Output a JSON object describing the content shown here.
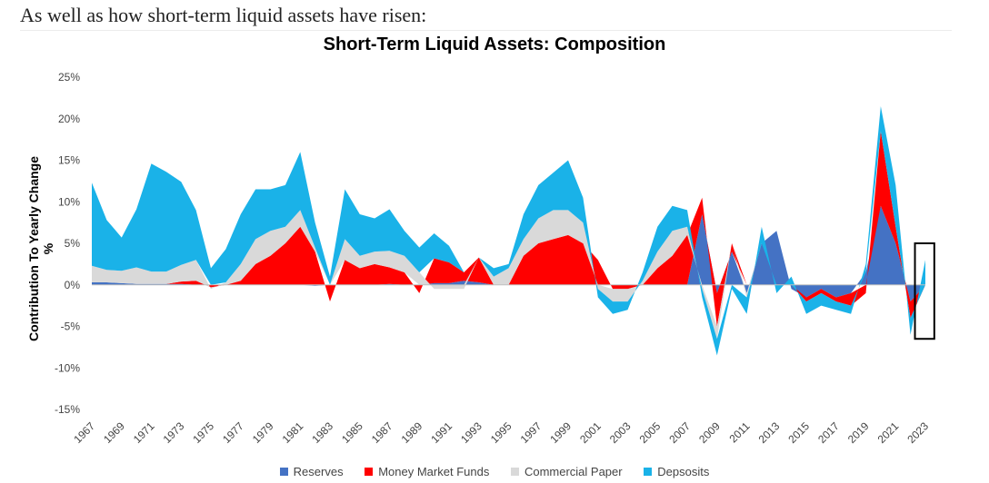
{
  "intro_text": "As well as how short-term liquid assets have risen:",
  "chart_data": {
    "type": "area",
    "stacked": true,
    "title": "Short-Term Liquid Assets: Composition",
    "xlabel": "",
    "ylabel": "Contribution To Yearly Change %",
    "ylim": [
      -15,
      25
    ],
    "yticks": [
      "25%",
      "20%",
      "15%",
      "10%",
      "5%",
      "0%",
      "-5%",
      "-10%",
      "-15%"
    ],
    "xticks": [
      "1967",
      "1969",
      "1971",
      "1973",
      "1975",
      "1977",
      "1979",
      "1981",
      "1983",
      "1985",
      "1987",
      "1989",
      "1991",
      "1993",
      "1995",
      "1997",
      "1999",
      "2001",
      "2003",
      "2005",
      "2007",
      "2009",
      "2011",
      "2013",
      "2015",
      "2017",
      "2019",
      "2021",
      "2023"
    ],
    "legend_position": "bottom",
    "x": [
      1967,
      1968,
      1969,
      1970,
      1971,
      1972,
      1973,
      1974,
      1975,
      1976,
      1977,
      1978,
      1979,
      1980,
      1981,
      1982,
      1983,
      1984,
      1985,
      1986,
      1987,
      1988,
      1989,
      1990,
      1991,
      1992,
      1993,
      1994,
      1995,
      1996,
      1997,
      1998,
      1999,
      2000,
      2001,
      2002,
      2003,
      2004,
      2005,
      2006,
      2007,
      2008,
      2009,
      2010,
      2011,
      2012,
      2013,
      2014,
      2015,
      2016,
      2017,
      2018,
      2019,
      2020,
      2021,
      2022,
      2023
    ],
    "series": [
      {
        "name": "Reserves",
        "color": "#4472c4",
        "values": [
          0.3,
          0.3,
          0.2,
          0.1,
          0.1,
          0.1,
          0.1,
          0,
          0,
          0,
          0,
          0,
          0,
          0,
          0,
          -0.1,
          0,
          0,
          0,
          0,
          0.1,
          0,
          0,
          0.2,
          0.2,
          0.5,
          0.3,
          0,
          0,
          0,
          0,
          0,
          0,
          0,
          0,
          0,
          0,
          0,
          0,
          0,
          0,
          8.5,
          -1,
          4,
          -1,
          5,
          6.5,
          -0.5,
          -1.5,
          -0.5,
          -1.5,
          -1,
          1.5,
          9.5,
          5,
          -2,
          0
        ]
      },
      {
        "name": "Money Market Funds",
        "color": "#ff0000",
        "values": [
          0,
          0,
          0,
          0,
          0,
          0,
          0.3,
          0.5,
          -0.3,
          0,
          0.5,
          2.5,
          3.5,
          5,
          7,
          4,
          -2,
          3,
          2,
          2.5,
          2,
          1.5,
          -1,
          3,
          2.5,
          1,
          3,
          0,
          0,
          3.5,
          5,
          5.5,
          6,
          5,
          3,
          -0.5,
          -0.5,
          0,
          2,
          3.5,
          6,
          2,
          -4,
          1,
          0,
          0,
          0,
          0,
          -0.5,
          -0.5,
          -0.5,
          -1.5,
          -1,
          9,
          2,
          -2,
          0
        ]
      },
      {
        "name": "Commercial Paper",
        "color": "#d9d9d9",
        "values": [
          2,
          1.5,
          1.5,
          2,
          1.5,
          1.5,
          2,
          2.5,
          -0.2,
          0.3,
          2,
          3,
          3,
          2,
          2,
          0.5,
          0,
          2.5,
          1.5,
          1.5,
          2,
          2,
          1.5,
          -0.5,
          -0.5,
          -0.5,
          0,
          1,
          2,
          2,
          3,
          3.5,
          3,
          2.5,
          -0.5,
          -1.5,
          -1.5,
          0.5,
          2,
          3,
          1,
          -0.5,
          -1.5,
          0,
          -0.5,
          0,
          0,
          0,
          0,
          0,
          0,
          0,
          0,
          0,
          0,
          0,
          0
        ]
      },
      {
        "name": "Depsosits",
        "color": "#1ab2e8",
        "values": [
          10,
          6,
          4,
          7,
          13,
          12,
          10,
          6,
          2,
          4,
          6,
          6,
          5,
          5,
          7,
          3,
          1,
          6,
          5,
          4,
          5,
          3,
          3,
          3,
          2,
          0,
          0,
          1,
          0.5,
          3,
          4,
          4.5,
          6,
          3,
          -1,
          -1.5,
          -1,
          1,
          3,
          3,
          2,
          -1,
          -2,
          -0.5,
          -2,
          2,
          -1,
          1,
          -1.5,
          -1.5,
          -1,
          -1,
          1,
          3,
          5,
          -2,
          3
        ]
      }
    ],
    "highlight_box": {
      "x_start": 2022.3,
      "x_end": 2023.6,
      "y_min": -6.5,
      "y_max": 5
    }
  }
}
